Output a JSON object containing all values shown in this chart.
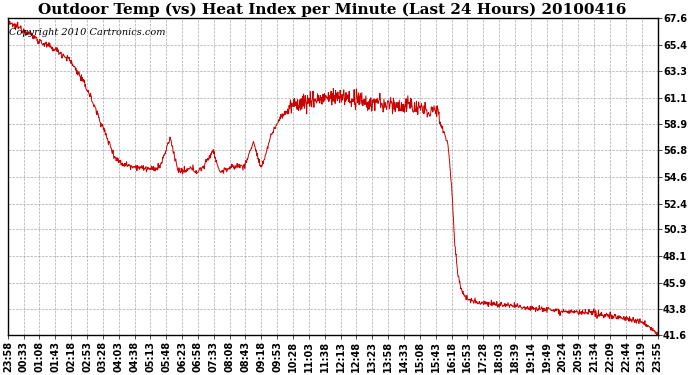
{
  "title": "Outdoor Temp (vs) Heat Index per Minute (Last 24 Hours) 20100416",
  "copyright_text": "Copyright 2010 Cartronics.com",
  "line_color": "#cc0000",
  "background_color": "#ffffff",
  "grid_color": "#aaaaaa",
  "ylim": [
    41.6,
    67.6
  ],
  "yticks": [
    41.6,
    43.8,
    45.9,
    48.1,
    50.3,
    52.4,
    54.6,
    56.8,
    58.9,
    61.1,
    63.3,
    65.4,
    67.6
  ],
  "xtick_labels": [
    "23:58",
    "00:33",
    "01:08",
    "01:43",
    "02:18",
    "02:53",
    "03:28",
    "04:03",
    "04:38",
    "05:13",
    "05:48",
    "06:23",
    "06:58",
    "07:33",
    "08:08",
    "08:43",
    "09:18",
    "09:53",
    "10:28",
    "11:03",
    "11:38",
    "12:13",
    "12:48",
    "13:23",
    "13:58",
    "14:33",
    "15:08",
    "15:43",
    "16:18",
    "16:53",
    "17:28",
    "18:03",
    "18:39",
    "19:14",
    "19:49",
    "20:24",
    "20:59",
    "21:34",
    "22:09",
    "22:44",
    "23:19",
    "23:55"
  ],
  "title_fontsize": 11,
  "copyright_fontsize": 7,
  "tick_fontsize": 7
}
